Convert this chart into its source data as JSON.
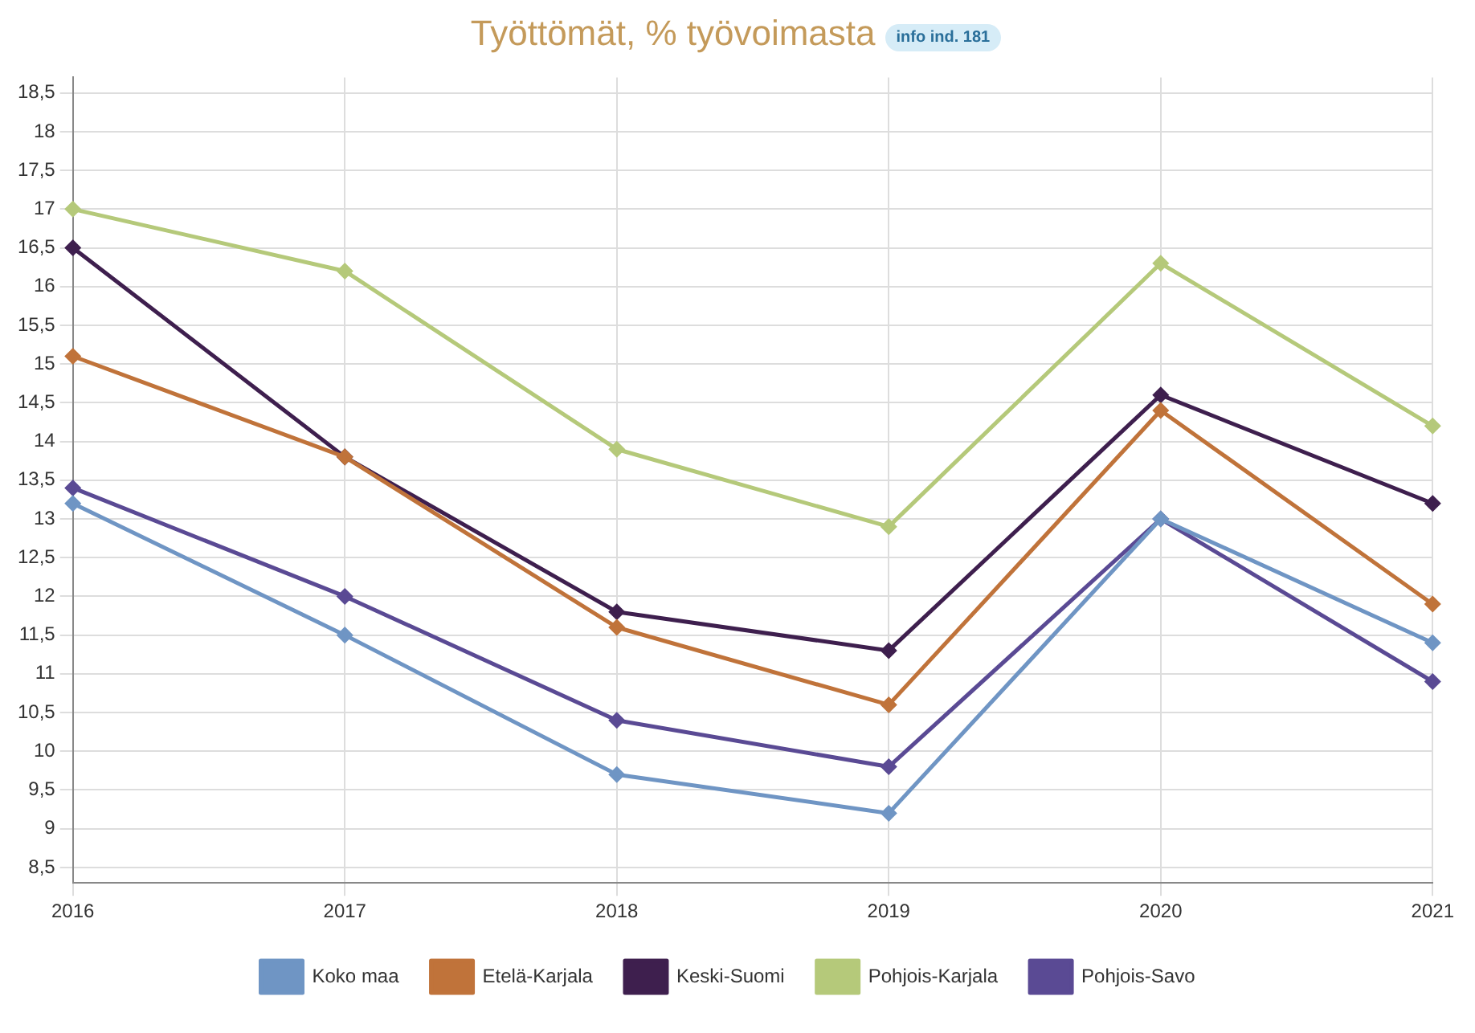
{
  "chart_data": {
    "type": "line",
    "title": "Työttömät, % työvoimasta",
    "annotations": [
      "info ind. 181"
    ],
    "categories": [
      "2016",
      "2017",
      "2018",
      "2019",
      "2020",
      "2021"
    ],
    "series": [
      {
        "name": "Koko maa",
        "color": "#6f95c4",
        "values": [
          13.2,
          11.5,
          9.7,
          9.2,
          13.0,
          11.4
        ]
      },
      {
        "name": "Etelä-Karjala",
        "color": "#c0733a",
        "values": [
          15.1,
          13.8,
          11.6,
          10.6,
          14.4,
          11.9
        ]
      },
      {
        "name": "Keski-Suomi",
        "color": "#3e1f4e",
        "values": [
          16.5,
          13.8,
          11.8,
          11.3,
          14.6,
          13.2
        ]
      },
      {
        "name": "Pohjois-Karjala",
        "color": "#b5c97a",
        "values": [
          17.0,
          16.2,
          13.9,
          12.9,
          16.3,
          14.2
        ]
      },
      {
        "name": "Pohjois-Savo",
        "color": "#5a4a94",
        "values": [
          13.4,
          12.0,
          10.4,
          9.8,
          13.0,
          10.9
        ]
      }
    ],
    "ylim": [
      8.3,
      18.7
    ],
    "yticks": [
      {
        "value": 8.5,
        "label": "8,5"
      },
      9,
      {
        "value": 9.5,
        "label": "9,5"
      },
      10,
      {
        "value": 10.5,
        "label": "10,5"
      },
      11,
      {
        "value": 11.5,
        "label": "11,5"
      },
      12,
      {
        "value": 12.5,
        "label": "12,5"
      },
      13,
      {
        "value": 13.5,
        "label": "13,5"
      },
      14,
      {
        "value": 14.5,
        "label": "14,5"
      },
      15,
      {
        "value": 15.5,
        "label": "15,5"
      },
      16,
      {
        "value": 16.5,
        "label": "16,5"
      },
      17,
      {
        "value": 17.5,
        "label": "17,5"
      },
      18,
      {
        "value": 18.5,
        "label": "18,5"
      }
    ],
    "grid": true,
    "legend": "bottom",
    "marker": "diamond",
    "line_style": "solid"
  }
}
